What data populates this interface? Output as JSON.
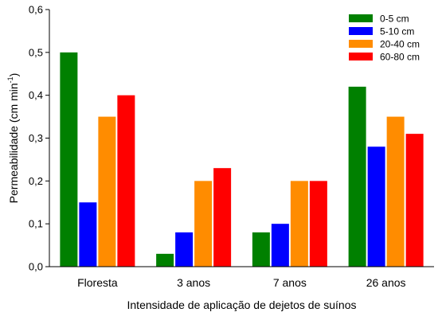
{
  "chart_data": {
    "type": "bar",
    "title": "",
    "xlabel": "Intensidade de aplicação de dejetos de suínos",
    "ylabel": "Permeabilidade (cm min",
    "ylabel_superscript": "-1",
    "ylabel_suffix": ")",
    "ylim": [
      0,
      0.6
    ],
    "yticks": [
      "0,0",
      "0,1",
      "0,2",
      "0,3",
      "0,4",
      "0,5",
      "0,6"
    ],
    "categories": [
      "Floresta",
      "3 anos",
      "7 anos",
      "26 anos"
    ],
    "series": [
      {
        "name": "0-5 cm",
        "color": "#008000",
        "values": [
          0.5,
          0.03,
          0.08,
          0.42
        ]
      },
      {
        "name": "5-10 cm",
        "color": "#0000FF",
        "values": [
          0.15,
          0.08,
          0.1,
          0.28
        ]
      },
      {
        "name": "20-40 cm",
        "color": "#FF8C00",
        "values": [
          0.35,
          0.2,
          0.2,
          0.35
        ]
      },
      {
        "name": "60-80 cm",
        "color": "#FF0000",
        "values": [
          0.4,
          0.23,
          0.2,
          0.31
        ]
      }
    ],
    "legend_position": "top-right",
    "grid": false
  }
}
